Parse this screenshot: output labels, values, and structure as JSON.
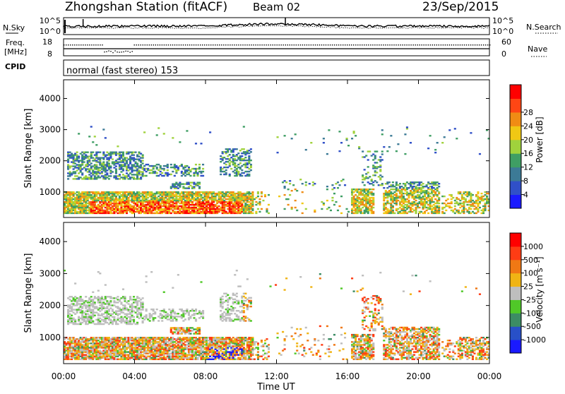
{
  "header": {
    "station": "Zhongshan Station (fitACF)",
    "beam": "Beam 02",
    "date": "23/Sep/2015"
  },
  "top_panels": {
    "nsky_label": "N.Sky",
    "nsearch_label": "N.Search",
    "noise_ticks": [
      "10^5",
      "10^0"
    ],
    "freq_label": "Freq.",
    "freq_unit": "[MHz]",
    "freq_ticks": [
      "18",
      "8"
    ],
    "nave_label": "Nave",
    "nave_ticks": [
      "60",
      "0"
    ],
    "cpid_label": "CPID",
    "cpid_text": "normal (fast stereo) 153"
  },
  "chart_data": [
    {
      "type": "heatmap",
      "name": "power",
      "ylabel": "Slant Range [km]",
      "yticks": [
        1000,
        2000,
        3000,
        4000
      ],
      "ylim": [
        180,
        4600
      ],
      "xlim": [
        0,
        24
      ],
      "colorbar_label": "Power [dB]",
      "colorbar_ticks": [
        "4",
        "8",
        "12",
        "16",
        "20",
        "24",
        "28"
      ],
      "colorbar_colors": [
        "#1a1aff",
        "#3050c8",
        "#3c7a96",
        "#3f9e64",
        "#a0d23c",
        "#f0c814",
        "#f08c14",
        "#ff4614",
        "#ff0000"
      ]
    },
    {
      "type": "heatmap",
      "name": "velocity",
      "ylabel": "Slant Range [km]",
      "yticks": [
        1000,
        2000,
        3000,
        4000
      ],
      "ylim": [
        180,
        4600
      ],
      "xlim": [
        0,
        24
      ],
      "xlabel": "Time UT",
      "xticks": [
        "00:00",
        "04:00",
        "08:00",
        "12:00",
        "16:00",
        "20:00",
        "00:00"
      ],
      "colorbar_label": "Velocity [m s⁻¹]",
      "colorbar_ticks": [
        "1000",
        "500",
        "100",
        "25",
        "-25",
        "-100",
        "-500",
        "-1000"
      ],
      "colorbar_colors": [
        "#1a1aff",
        "#2850c8",
        "#3c8c64",
        "#50c828",
        "#bebebe",
        "#f0b414",
        "#f07814",
        "#ff3c14",
        "#ff0000"
      ]
    }
  ]
}
